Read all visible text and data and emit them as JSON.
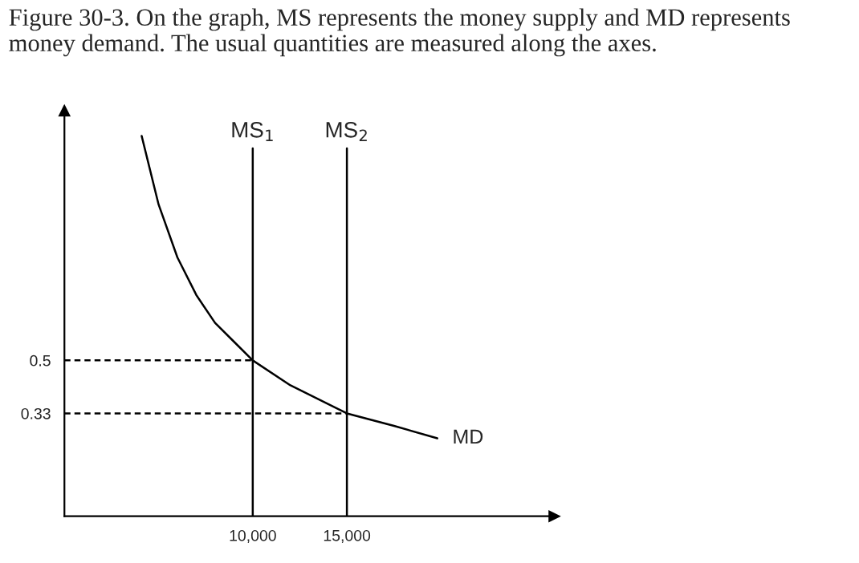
{
  "chart_data": {
    "type": "line",
    "title": "Figure 30-3. On the graph, MS represents the money supply and MD represents money demand. The usual quantities are measured along the axes.",
    "xlim": [
      0,
      26000
    ],
    "ylim": [
      0,
      1.3
    ],
    "xticks": [
      {
        "value": 10000,
        "label": "10,000"
      },
      {
        "value": 15000,
        "label": "15,000"
      }
    ],
    "yticks": [
      0.33,
      0.5
    ],
    "grid": false,
    "legend": false,
    "marker": "none",
    "series": [
      {
        "name": "MD",
        "color": "#000000",
        "line_style": "solid",
        "x": [
          4100,
          5000,
          6000,
          7000,
          8000,
          9000,
          10000,
          12000,
          15000,
          17500,
          19800
        ],
        "values": [
          1.22,
          1.0,
          0.83,
          0.71,
          0.62,
          0.56,
          0.5,
          0.42,
          0.33,
          0.29,
          0.25
        ]
      },
      {
        "name": "MS$_{1}$",
        "color": "#000000",
        "line_style": "solid",
        "x": [
          10000,
          10000
        ],
        "values": [
          0,
          1.18
        ]
      },
      {
        "name": "MS$_{2}$",
        "color": "#000000",
        "line_style": "solid",
        "x": [
          15000,
          15000
        ],
        "values": [
          0,
          1.18
        ]
      },
      {
        "color": "#000000",
        "line_style": "dashed",
        "x": [
          0,
          10000
        ],
        "values": [
          0.5,
          0.5
        ]
      },
      {
        "color": "#000000",
        "line_style": "dashed",
        "x": [
          0,
          15000
        ],
        "values": [
          0.33,
          0.33
        ]
      }
    ]
  }
}
